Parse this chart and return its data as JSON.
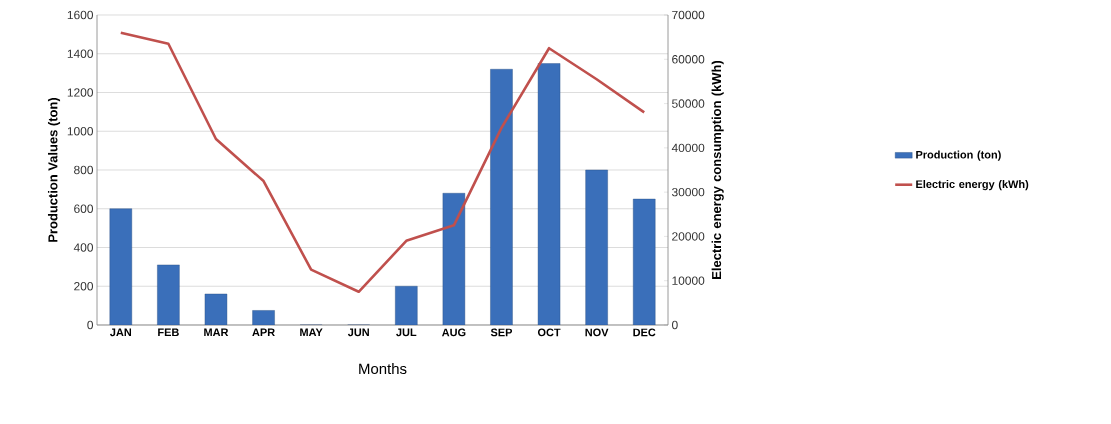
{
  "chart_data": {
    "type": "bar",
    "xlabel": "Months",
    "ylabel": "Production Values (ton)",
    "y2label": "Electric energy consumption (kWh)",
    "categories": [
      "JAN",
      "FEB",
      "MAR",
      "APR",
      "MAY",
      "JUN",
      "JUL",
      "AUG",
      "SEP",
      "OCT",
      "NOV",
      "DEC"
    ],
    "series": [
      {
        "name": "Production (ton)",
        "color": "#3a6fba",
        "values": [
          600,
          310,
          160,
          75,
          0,
          0,
          200,
          680,
          1320,
          1350,
          800,
          650
        ]
      },
      {
        "name": "Electric energy (kWh)",
        "type": "line",
        "axis": "y2",
        "color": "#c0504d",
        "values": [
          66000,
          63500,
          42000,
          32500,
          12500,
          7500,
          19000,
          22500,
          44500,
          62500,
          55500,
          48000
        ]
      }
    ],
    "ylim": [
      0,
      1600
    ],
    "yticks": [
      0,
      200,
      400,
      600,
      800,
      1000,
      1200,
      1400,
      1600
    ],
    "y2lim": [
      0,
      70000
    ],
    "y2ticks": [
      0,
      10000,
      20000,
      30000,
      40000,
      50000,
      60000,
      70000
    ],
    "grid": "y",
    "legend": "right",
    "marker": "none"
  }
}
